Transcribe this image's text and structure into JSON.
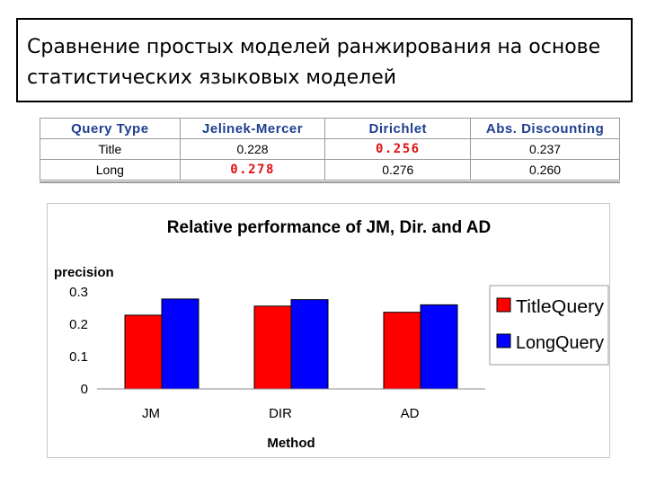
{
  "slide": {
    "title_line1": "Сравнение простых моделей ранжирования на основе",
    "title_line2": "статистических языковых моделей"
  },
  "table": {
    "headers": [
      "Query Type",
      "Jelinek-Mercer",
      "Dirichlet",
      "Abs. Discounting"
    ],
    "rows": [
      {
        "cells": [
          "Title",
          "0.228",
          "0.256",
          "0.237"
        ],
        "best_index": 2
      },
      {
        "cells": [
          "Long",
          "0.278",
          "0.276",
          "0.260"
        ],
        "best_index": 1
      }
    ]
  },
  "chart_data": {
    "type": "bar",
    "title": "Relative performance of JM, Dir. and AD",
    "ylabel": "precision",
    "xlabel": "Method",
    "categories": [
      "JM",
      "DIR",
      "AD"
    ],
    "series": [
      {
        "name": "TitleQuery",
        "color": "#ff0000",
        "values": [
          0.228,
          0.256,
          0.237
        ]
      },
      {
        "name": "LongQuery",
        "color": "#0000ff",
        "values": [
          0.278,
          0.276,
          0.26
        ]
      }
    ],
    "ylim": [
      0,
      0.3
    ],
    "yticks": [
      "0",
      "0.1",
      "0.2",
      "0.3"
    ],
    "legend": "right",
    "grid": false
  }
}
